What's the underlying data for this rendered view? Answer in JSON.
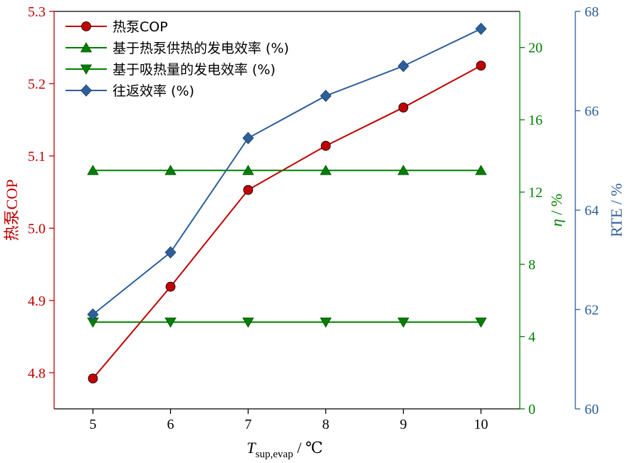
{
  "chart_data": {
    "type": "line",
    "x": [
      5,
      6,
      7,
      8,
      9,
      10
    ],
    "x_ticks": [
      "5",
      "6",
      "7",
      "8",
      "9",
      "10"
    ],
    "xlim": [
      4.5,
      10.5
    ],
    "xlabel": {
      "symbol": "T",
      "subscript": "sup,evap",
      "unit": " / ℃"
    },
    "axes": {
      "left": {
        "label": "热泵COP",
        "color": "#c00000",
        "ylim": [
          4.75,
          5.3
        ],
        "ticks": [
          "4.8",
          "4.9",
          "5.0",
          "5.1",
          "5.2",
          "5.3"
        ]
      },
      "right_inner": {
        "label_symbol": "η",
        "label_unit": " / %",
        "color": "#007f00",
        "ylim": [
          0,
          22
        ],
        "ticks": [
          "0",
          "4",
          "8",
          "12",
          "16",
          "20"
        ]
      },
      "right_outer": {
        "label": "RTE / %",
        "color": "#2e5f9a",
        "ylim": [
          60,
          68
        ],
        "ticks": [
          "60",
          "62",
          "64",
          "66",
          "68"
        ]
      }
    },
    "series": [
      {
        "name": "热泵COP",
        "axis": "left",
        "color": "#c00000",
        "marker": "circle",
        "values": [
          4.792,
          4.919,
          5.053,
          5.114,
          5.167,
          5.225
        ]
      },
      {
        "name": "基于热泵供热的发电效率 (%)",
        "axis": "right_inner",
        "color": "#007f00",
        "marker": "triangle-up",
        "values": [
          13.2,
          13.2,
          13.2,
          13.2,
          13.2,
          13.2
        ]
      },
      {
        "name": "基于吸热量的发电效率 (%)",
        "axis": "right_inner",
        "color": "#007f00",
        "marker": "triangle-down",
        "values": [
          4.8,
          4.8,
          4.8,
          4.8,
          4.8,
          4.8
        ]
      },
      {
        "name": "往返效率 (%)",
        "axis": "right_outer",
        "color": "#2e5f9a",
        "marker": "diamond",
        "values": [
          61.9,
          63.15,
          65.45,
          66.3,
          66.9,
          67.65
        ]
      }
    ],
    "legend_position": "top-left",
    "grid": false
  }
}
